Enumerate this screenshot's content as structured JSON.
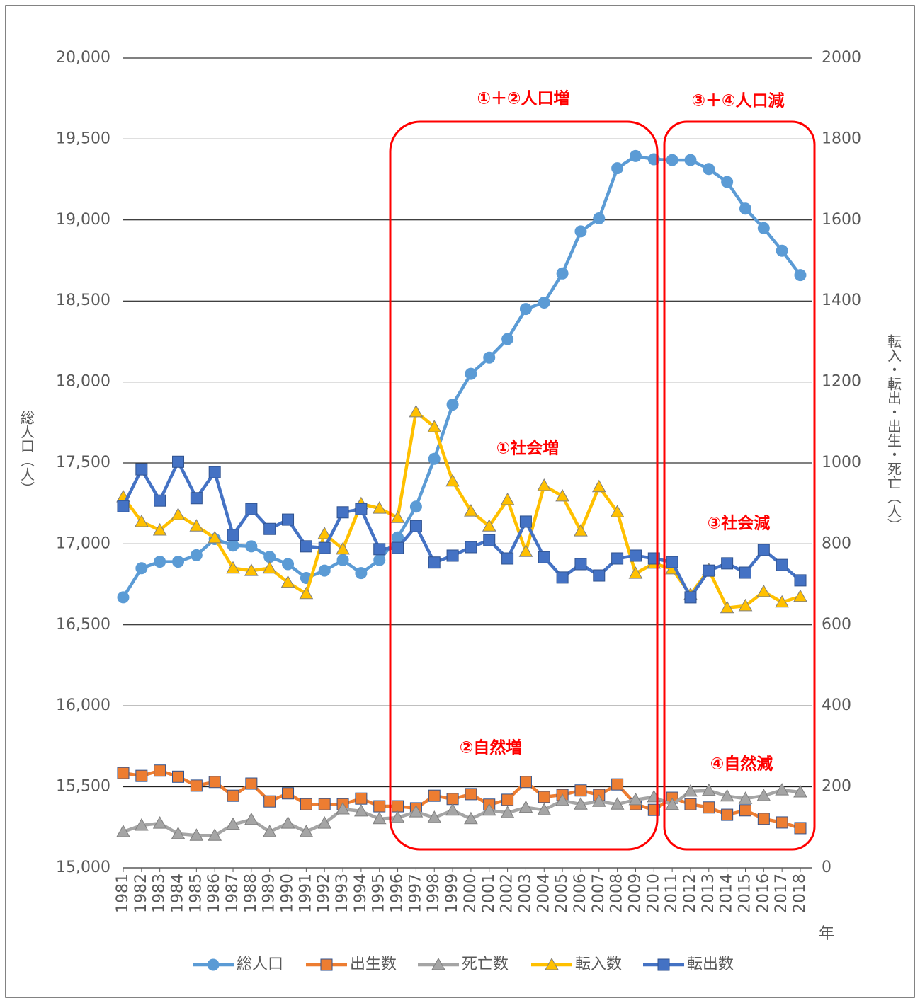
{
  "chart_data": {
    "type": "line",
    "categories": [
      "1981",
      "1982",
      "1983",
      "1984",
      "1985",
      "1986",
      "1987",
      "1988",
      "1989",
      "1990",
      "1991",
      "1992",
      "1993",
      "1994",
      "1995",
      "1996",
      "1997",
      "1998",
      "1999",
      "2000",
      "2001",
      "2002",
      "2003",
      "2004",
      "2005",
      "2006",
      "2007",
      "2008",
      "2009",
      "2010",
      "2011",
      "2012",
      "2013",
      "2014",
      "2015",
      "2016",
      "2017",
      "2018"
    ],
    "series": [
      {
        "name": "総人口",
        "color": "#5b9bd5",
        "marker": "circle",
        "values": [
          16670,
          16850,
          16890,
          16890,
          16930,
          17030,
          16990,
          16985,
          16920,
          16875,
          16790,
          16835,
          16900,
          16820,
          16900,
          17040,
          17230,
          17525,
          17860,
          18050,
          18150,
          18265,
          18450,
          18490,
          18670,
          18930,
          19010,
          19320,
          19395,
          19375,
          19370,
          19370,
          19315,
          19235,
          19070,
          18950,
          18810,
          18660
        ]
      },
      {
        "name": "出生数",
        "color": "#ed7d31",
        "marker": "square",
        "axis": "y2",
        "values": [
          234,
          227,
          240,
          225,
          203,
          212,
          178,
          208,
          164,
          184,
          157,
          157,
          157,
          171,
          152,
          152,
          147,
          178,
          170,
          182,
          156,
          168,
          212,
          175,
          180,
          191,
          180,
          206,
          157,
          143,
          173,
          157,
          149,
          131,
          142,
          121,
          112,
          98
        ]
      },
      {
        "name": "死亡数",
        "color": "#a5a5a5",
        "marker": "triangle",
        "axis": "y2",
        "values": [
          89,
          105,
          110,
          84,
          80,
          80,
          107,
          119,
          89,
          110,
          89,
          110,
          145,
          140,
          121,
          124,
          138,
          124,
          142,
          121,
          142,
          136,
          149,
          143,
          166,
          157,
          164,
          157,
          168,
          175,
          156,
          189,
          191,
          177,
          171,
          178,
          192,
          187
        ]
      },
      {
        "name": "転入数",
        "color": "#ffc000",
        "marker": "triangle",
        "axis": "y2",
        "values": [
          916,
          855,
          834,
          872,
          844,
          815,
          740,
          734,
          740,
          705,
          677,
          825,
          787,
          899,
          888,
          865,
          1126,
          1089,
          955,
          881,
          844,
          909,
          781,
          944,
          918,
          832,
          941,
          879,
          727,
          752,
          738,
          675,
          736,
          642,
          647,
          682,
          656,
          670
        ]
      },
      {
        "name": "転出数",
        "color": "#4472c4",
        "marker": "square",
        "axis": "y2",
        "values": [
          893,
          984,
          907,
          1003,
          913,
          977,
          822,
          886,
          837,
          860,
          794,
          790,
          878,
          886,
          787,
          790,
          844,
          754,
          771,
          792,
          809,
          764,
          855,
          767,
          717,
          750,
          722,
          764,
          771,
          764,
          755,
          668,
          734,
          752,
          729,
          785,
          748,
          710
        ]
      }
    ],
    "ylim": [
      15000,
      20000
    ],
    "yticks": [
      {
        "value": 15000,
        "label": "15,000"
      },
      {
        "value": 15500,
        "label": "15,500"
      },
      {
        "value": 16000,
        "label": "16,000"
      },
      {
        "value": 16500,
        "label": "16,500"
      },
      {
        "value": 17000,
        "label": "17,000"
      },
      {
        "value": 17500,
        "label": "17,500"
      },
      {
        "value": 18000,
        "label": "18,000"
      },
      {
        "value": 18500,
        "label": "18,500"
      },
      {
        "value": 19000,
        "label": "19,000"
      },
      {
        "value": 19500,
        "label": "19,500"
      },
      {
        "value": 20000,
        "label": "20,000"
      }
    ],
    "y2lim": [
      0,
      2000
    ],
    "y2ticks": [
      0,
      200,
      400,
      600,
      800,
      1000,
      1200,
      1400,
      1600,
      1800,
      2000
    ],
    "ylabel": "総人口（人）",
    "y2label": "転入・転出・出生・死亡（人）",
    "xlabel": "年",
    "grid": true,
    "legend": "bottom",
    "annotations": [
      "①＋②人口増",
      "③＋④人口減",
      "①社会増",
      "②自然増",
      "③社会減",
      "④自然減"
    ]
  }
}
